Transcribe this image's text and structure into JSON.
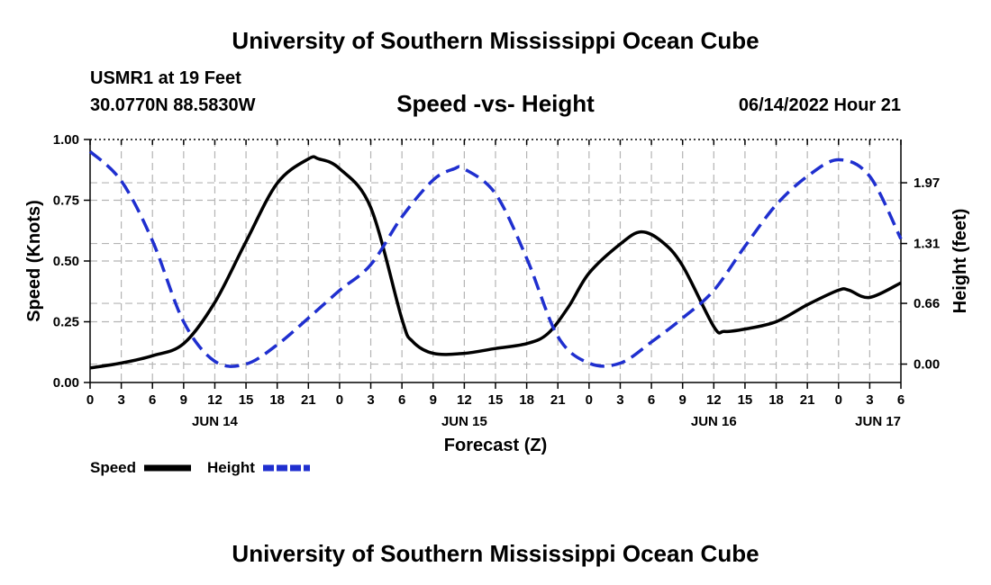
{
  "header": {
    "title": "University of Southern Mississippi Ocean Cube",
    "station": "USMR1 at 19 Feet",
    "coords": "30.0770N  88.5830W",
    "chart_title": "Speed -vs- Height",
    "datetime": "06/14/2022 Hour 21"
  },
  "footer": {
    "title": "University of Southern Mississippi Ocean Cube"
  },
  "chart_data": {
    "type": "line",
    "title": "Speed -vs- Height",
    "xlabel": "Forecast (Z)",
    "ylabel": "Speed (Knots)",
    "y2label": "Height (feet)",
    "xlim": [
      0,
      78
    ],
    "ylim": [
      0,
      1.0
    ],
    "y2lim": [
      -0.2,
      2.44
    ],
    "x_ticks": [
      0,
      3,
      6,
      9,
      12,
      15,
      18,
      21,
      24,
      27,
      30,
      33,
      36,
      39,
      42,
      45,
      48,
      51,
      54,
      57,
      60,
      63,
      66,
      69,
      72,
      75,
      78
    ],
    "x_tick_labels": [
      "0",
      "3",
      "6",
      "9",
      "12",
      "15",
      "18",
      "21",
      "0",
      "3",
      "6",
      "9",
      "12",
      "15",
      "18",
      "21",
      "0",
      "3",
      "6",
      "9",
      "12",
      "15",
      "18",
      "21",
      "0",
      "3",
      "6"
    ],
    "date_labels": [
      {
        "x": 12,
        "label": "JUN 14"
      },
      {
        "x": 36,
        "label": "JUN 15"
      },
      {
        "x": 60,
        "label": "JUN 16"
      },
      {
        "x": 78,
        "label": "JUN 17"
      }
    ],
    "y_ticks": [
      0,
      0.25,
      0.5,
      0.75,
      1.0
    ],
    "y_tick_labels": [
      "0.00",
      "0.25",
      "0.50",
      "0.75",
      "1.00"
    ],
    "y2_ticks": [
      0.0,
      0.66,
      1.31,
      1.97
    ],
    "y2_tick_labels": [
      "0.00",
      "0.66",
      "1.31",
      "1.97"
    ],
    "series": [
      {
        "name": "Speed",
        "axis": "left",
        "color": "#000000",
        "style": "solid",
        "x": [
          0,
          3,
          6,
          9,
          12,
          15,
          18,
          21,
          22,
          24,
          27,
          30,
          31,
          33,
          36,
          39,
          42,
          44,
          46,
          48,
          51,
          53,
          55,
          57,
          60,
          61,
          63,
          66,
          69,
          72,
          73,
          75,
          78
        ],
        "y": [
          0.06,
          0.08,
          0.11,
          0.16,
          0.33,
          0.58,
          0.82,
          0.92,
          0.92,
          0.88,
          0.72,
          0.26,
          0.17,
          0.12,
          0.12,
          0.14,
          0.16,
          0.2,
          0.31,
          0.45,
          0.57,
          0.62,
          0.58,
          0.48,
          0.23,
          0.21,
          0.22,
          0.25,
          0.32,
          0.38,
          0.38,
          0.35,
          0.41
        ]
      },
      {
        "name": "Height",
        "axis": "right",
        "color": "#1f2fcf",
        "style": "dashed",
        "x": [
          0,
          3,
          6,
          9,
          12,
          15,
          18,
          21,
          24,
          27,
          30,
          33,
          35,
          36,
          39,
          42,
          45,
          48,
          51,
          54,
          57,
          60,
          63,
          66,
          69,
          72,
          75,
          78
        ],
        "y": [
          2.31,
          1.99,
          1.34,
          0.46,
          0.03,
          0.0,
          0.21,
          0.5,
          0.8,
          1.08,
          1.6,
          2.0,
          2.12,
          2.12,
          1.85,
          1.15,
          0.3,
          0.01,
          0.01,
          0.24,
          0.5,
          0.8,
          1.28,
          1.73,
          2.04,
          2.22,
          2.04,
          1.36
        ]
      }
    ],
    "legend": [
      {
        "label": "Speed",
        "color": "#000000",
        "style": "solid"
      },
      {
        "label": "Height",
        "color": "#1f2fcf",
        "style": "dashed"
      }
    ]
  }
}
